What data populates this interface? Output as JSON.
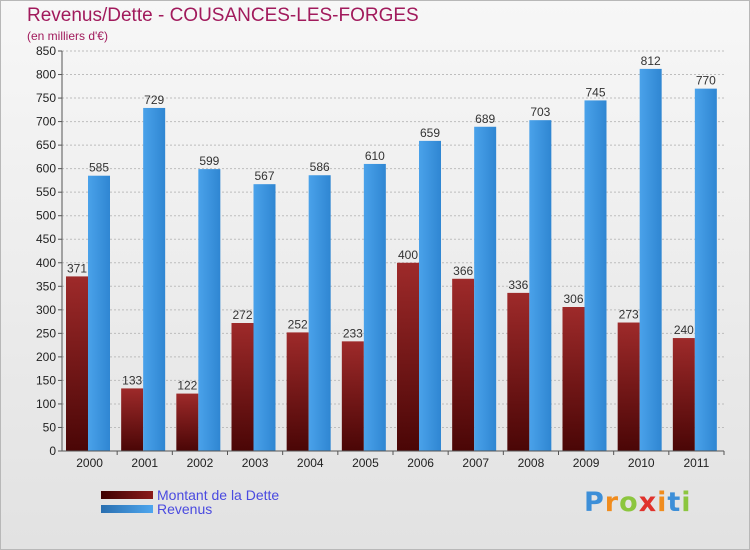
{
  "header": {
    "title": "Revenus/Dette - COUSANCES-LES-FORGES",
    "subtitle": "(en milliers d'€)"
  },
  "chart_data": {
    "type": "bar",
    "categories": [
      "2000",
      "2001",
      "2002",
      "2003",
      "2004",
      "2005",
      "2006",
      "2007",
      "2008",
      "2009",
      "2010",
      "2011"
    ],
    "series": [
      {
        "name": "Montant de la Dette",
        "color": "#8a1a1a",
        "values": [
          371,
          133,
          122,
          272,
          252,
          233,
          400,
          366,
          336,
          306,
          273,
          240
        ]
      },
      {
        "name": "Revenus",
        "color": "#3f97e0",
        "values": [
          585,
          729,
          599,
          567,
          586,
          610,
          659,
          689,
          703,
          745,
          812,
          770
        ]
      }
    ],
    "ylim": [
      0,
      850
    ],
    "yticks": [
      "0",
      "50",
      "100",
      "150",
      "200",
      "250",
      "300",
      "350",
      "400",
      "450",
      "500",
      "550",
      "600",
      "650",
      "700",
      "750",
      "800",
      "850"
    ],
    "grid": true,
    "legend_position": "bottom-left",
    "xlabel": "",
    "ylabel": ""
  },
  "logo": {
    "letters": [
      "P",
      "r",
      "o",
      "x",
      "i",
      "t",
      "i"
    ],
    "colors": [
      "#3d8fd8",
      "#f08c1e",
      "#8cc63f",
      "#e0322c",
      "#f08c1e",
      "#3d8fd8",
      "#8cc63f"
    ]
  }
}
